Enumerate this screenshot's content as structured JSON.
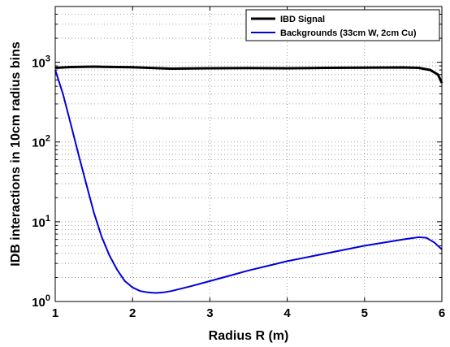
{
  "chart_data": {
    "type": "line",
    "xlabel": "Radius R (m)",
    "ylabel": "IDB interactions in 10cm radius bins",
    "xlim": [
      1,
      6
    ],
    "ylim": [
      1,
      5000
    ],
    "yscale": "log",
    "grid": true,
    "legend_position": "top-right",
    "x_ticks": [
      "1",
      "2",
      "3",
      "4",
      "5",
      "6"
    ],
    "y_ticks": [
      {
        "value": 1,
        "base": "10",
        "exp": "0"
      },
      {
        "value": 10,
        "base": "10",
        "exp": "1"
      },
      {
        "value": 100,
        "base": "10",
        "exp": "2"
      },
      {
        "value": 1000,
        "base": "10",
        "exp": "3"
      }
    ],
    "series": [
      {
        "name": "IBD Signal",
        "color": "#000000",
        "x": [
          1.0,
          1.2,
          1.5,
          2.0,
          2.5,
          3.0,
          3.5,
          4.0,
          4.5,
          5.0,
          5.5,
          5.7,
          5.85,
          5.95,
          6.0
        ],
        "y": [
          850,
          870,
          880,
          865,
          830,
          840,
          845,
          840,
          850,
          855,
          860,
          850,
          800,
          700,
          550
        ]
      },
      {
        "name": "Backgrounds (33cm W, 2cm Cu)",
        "color": "#0000dd",
        "x": [
          1.0,
          1.1,
          1.2,
          1.3,
          1.4,
          1.5,
          1.6,
          1.7,
          1.8,
          1.9,
          2.0,
          2.1,
          2.2,
          2.3,
          2.4,
          2.5,
          2.75,
          3.0,
          3.25,
          3.5,
          3.75,
          4.0,
          4.5,
          5.0,
          5.5,
          5.7,
          5.8,
          5.9,
          6.0
        ],
        "y": [
          800,
          400,
          170,
          70,
          30,
          13,
          6.5,
          3.8,
          2.5,
          1.8,
          1.5,
          1.35,
          1.3,
          1.28,
          1.3,
          1.35,
          1.55,
          1.8,
          2.1,
          2.45,
          2.8,
          3.2,
          4.0,
          5.0,
          6.0,
          6.4,
          6.3,
          5.5,
          4.5
        ]
      }
    ]
  }
}
